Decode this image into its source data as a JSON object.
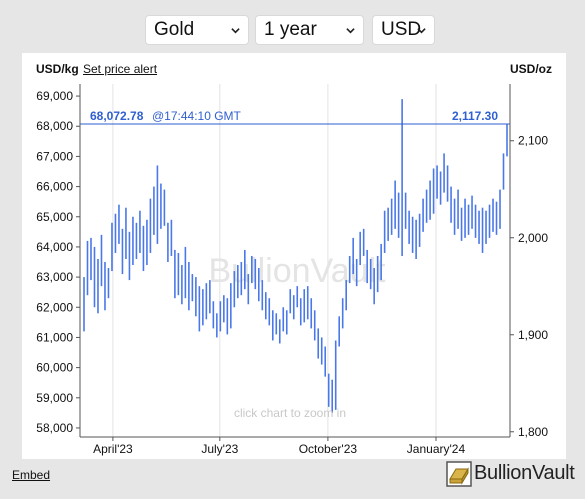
{
  "controls": {
    "metal": "Gold",
    "period": "1 year",
    "currency": "USD"
  },
  "header": {
    "left_unit": "USD/kg",
    "set_alert_label": "Set price alert",
    "right_unit": "USD/oz"
  },
  "footer": {
    "embed_label": "Embed",
    "brand_name": "BullionVault"
  },
  "colors": {
    "series": "#4a78e8",
    "crosshair": "#2f5fd0",
    "background": "#e6e6e6",
    "panel": "#ffffff"
  },
  "chart_data": {
    "type": "line",
    "style": "high-low bars",
    "watermark": "BullionVault",
    "hint": "click chart to zoom in",
    "current": {
      "kg_label": "68,072.78",
      "time_label": "@17:44:10 GMT",
      "oz_label": "2,117.30",
      "kg_value": 68072.78,
      "oz_value": 2117.3
    },
    "left_axis": {
      "unit": "USD/kg",
      "ylim": [
        57700,
        69400
      ],
      "ticks": [
        58000,
        59000,
        60000,
        61000,
        62000,
        63000,
        64000,
        65000,
        66000,
        67000,
        68000,
        69000
      ],
      "tick_labels": [
        "58,000",
        "59,000",
        "60,000",
        "61,000",
        "62,000",
        "63,000",
        "64,000",
        "65,000",
        "66,000",
        "67,000",
        "68,000",
        "69,000"
      ]
    },
    "right_axis": {
      "unit": "USD/oz",
      "ylim": [
        1794.6,
        2158.5
      ],
      "ticks": [
        1800,
        1900,
        2000,
        2100
      ],
      "tick_labels": [
        "1,800",
        "1,900",
        "2,000",
        "2,100"
      ]
    },
    "x_axis": {
      "range": [
        "2023-03-04",
        "2024-03-04"
      ],
      "tick_labels": [
        {
          "date": "2023-04-01",
          "label": "April'23"
        },
        {
          "date": "2023-07-01",
          "label": "July'23"
        },
        {
          "date": "2023-10-01",
          "label": "October'23"
        },
        {
          "date": "2024-01-01",
          "label": "January'24"
        }
      ]
    },
    "grid": {
      "vertical": true,
      "horizontal": false
    },
    "series": [
      {
        "values_usd_per_kg": [
          [
            61200,
            63000
          ],
          [
            62400,
            64200
          ],
          [
            62900,
            64300
          ],
          [
            62000,
            64000
          ],
          [
            61800,
            63600
          ],
          [
            62700,
            64400
          ],
          [
            61900,
            63500
          ],
          [
            62300,
            63300
          ],
          [
            63200,
            64800
          ],
          [
            63800,
            65100
          ],
          [
            64100,
            65400
          ],
          [
            63100,
            64600
          ],
          [
            63600,
            65300
          ],
          [
            62900,
            64500
          ],
          [
            63400,
            65000
          ],
          [
            63600,
            64800
          ],
          [
            63800,
            65200
          ],
          [
            63200,
            64700
          ],
          [
            63400,
            64900
          ],
          [
            63800,
            65600
          ],
          [
            64400,
            66000
          ],
          [
            64100,
            66700
          ],
          [
            64600,
            66100
          ],
          [
            64700,
            65900
          ],
          [
            63500,
            64800
          ],
          [
            63700,
            64900
          ],
          [
            62300,
            63900
          ],
          [
            62400,
            63800
          ],
          [
            62100,
            63400
          ],
          [
            62300,
            64000
          ],
          [
            61900,
            63500
          ],
          [
            62200,
            63100
          ],
          [
            61700,
            63000
          ],
          [
            61200,
            62700
          ],
          [
            61400,
            62600
          ],
          [
            61600,
            62800
          ],
          [
            61800,
            62900
          ],
          [
            61300,
            62200
          ],
          [
            61000,
            61800
          ],
          [
            61200,
            62200
          ],
          [
            61500,
            62400
          ],
          [
            61100,
            62300
          ],
          [
            61300,
            62800
          ],
          [
            62000,
            63200
          ],
          [
            62300,
            63400
          ],
          [
            62400,
            63500
          ],
          [
            62600,
            63900
          ],
          [
            62100,
            63100
          ],
          [
            62800,
            63700
          ],
          [
            62600,
            63600
          ],
          [
            62200,
            63300
          ],
          [
            61900,
            62900
          ],
          [
            61600,
            62500
          ],
          [
            61400,
            62300
          ],
          [
            60900,
            61900
          ],
          [
            61100,
            61800
          ],
          [
            60800,
            61600
          ],
          [
            61200,
            62000
          ],
          [
            61100,
            61900
          ],
          [
            61800,
            62600
          ],
          [
            61600,
            62400
          ],
          [
            62000,
            62700
          ],
          [
            61400,
            62300
          ],
          [
            61500,
            62600
          ],
          [
            61600,
            62700
          ],
          [
            61300,
            62300
          ],
          [
            60900,
            61900
          ],
          [
            60300,
            61300
          ],
          [
            60100,
            61000
          ],
          [
            59700,
            60700
          ],
          [
            58700,
            59800
          ],
          [
            58500,
            59600
          ],
          [
            58600,
            60900
          ],
          [
            60700,
            61700
          ],
          [
            61300,
            62300
          ],
          [
            61900,
            62900
          ],
          [
            62800,
            63700
          ],
          [
            63100,
            64300
          ],
          [
            62700,
            63600
          ],
          [
            63400,
            64500
          ],
          [
            63700,
            64600
          ],
          [
            62800,
            63900
          ],
          [
            62600,
            63600
          ],
          [
            62100,
            63300
          ],
          [
            62500,
            63700
          ],
          [
            62900,
            64100
          ],
          [
            63800,
            65200
          ],
          [
            64200,
            65300
          ],
          [
            64400,
            65600
          ],
          [
            64600,
            66200
          ],
          [
            64300,
            65800
          ],
          [
            63700,
            68900
          ],
          [
            64600,
            65800
          ],
          [
            64100,
            65200
          ],
          [
            63800,
            65000
          ],
          [
            63600,
            64900
          ],
          [
            64000,
            65100
          ],
          [
            64500,
            65600
          ],
          [
            64800,
            65900
          ],
          [
            64900,
            66200
          ],
          [
            65100,
            66600
          ],
          [
            65600,
            66700
          ],
          [
            65400,
            66500
          ],
          [
            65800,
            67100
          ],
          [
            65500,
            66700
          ],
          [
            64800,
            66000
          ],
          [
            64400,
            65600
          ],
          [
            64600,
            65900
          ],
          [
            64200,
            65300
          ],
          [
            64300,
            65600
          ],
          [
            64400,
            65400
          ],
          [
            64600,
            65700
          ],
          [
            64300,
            65400
          ],
          [
            64100,
            65200
          ],
          [
            63800,
            65300
          ],
          [
            64100,
            65200
          ],
          [
            64300,
            65400
          ],
          [
            64500,
            65600
          ],
          [
            64400,
            65500
          ],
          [
            64600,
            65900
          ],
          [
            65900,
            67100
          ],
          [
            67000,
            68072.78
          ]
        ]
      }
    ]
  }
}
